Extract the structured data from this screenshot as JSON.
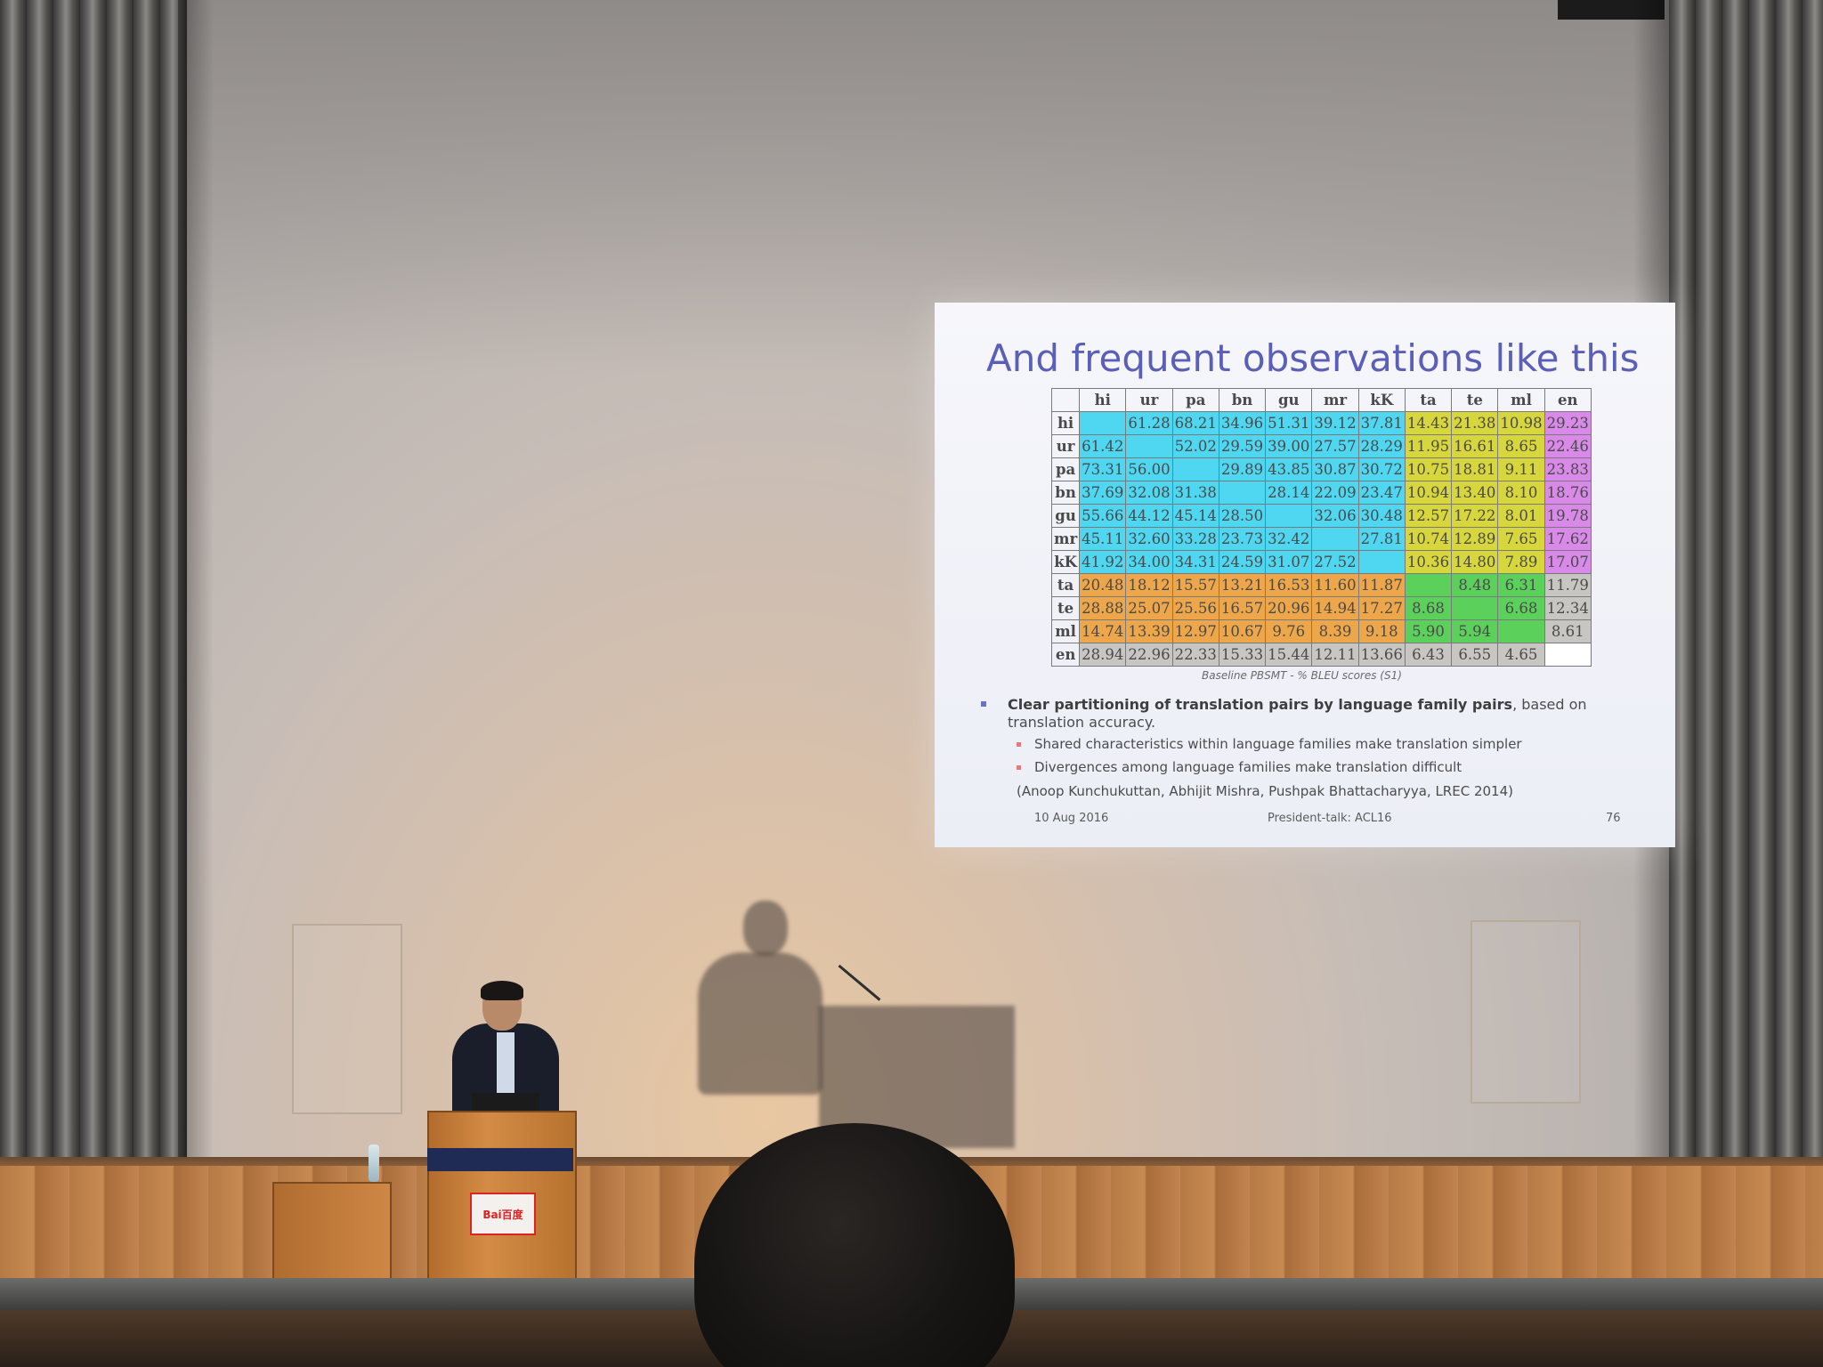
{
  "slide": {
    "title": "And frequent observations like this",
    "table": {
      "columns": [
        "hi",
        "ur",
        "pa",
        "bn",
        "gu",
        "mr",
        "kK",
        "ta",
        "te",
        "ml",
        "en"
      ],
      "rows": [
        {
          "label": "hi",
          "cells": [
            {
              "v": "",
              "c": "cyan"
            },
            {
              "v": "61.28",
              "c": "cyan"
            },
            {
              "v": "68.21",
              "c": "cyan"
            },
            {
              "v": "34.96",
              "c": "cyan"
            },
            {
              "v": "51.31",
              "c": "cyan"
            },
            {
              "v": "39.12",
              "c": "cyan"
            },
            {
              "v": "37.81",
              "c": "cyan"
            },
            {
              "v": "14.43",
              "c": "yellow"
            },
            {
              "v": "21.38",
              "c": "yellow"
            },
            {
              "v": "10.98",
              "c": "yellow"
            },
            {
              "v": "29.23",
              "c": "purple"
            }
          ]
        },
        {
          "label": "ur",
          "cells": [
            {
              "v": "61.42",
              "c": "cyan"
            },
            {
              "v": "",
              "c": "cyan"
            },
            {
              "v": "52.02",
              "c": "cyan"
            },
            {
              "v": "29.59",
              "c": "cyan"
            },
            {
              "v": "39.00",
              "c": "cyan"
            },
            {
              "v": "27.57",
              "c": "cyan"
            },
            {
              "v": "28.29",
              "c": "cyan"
            },
            {
              "v": "11.95",
              "c": "yellow"
            },
            {
              "v": "16.61",
              "c": "yellow"
            },
            {
              "v": "8.65",
              "c": "yellow"
            },
            {
              "v": "22.46",
              "c": "purple"
            }
          ]
        },
        {
          "label": "pa",
          "cells": [
            {
              "v": "73.31",
              "c": "cyan"
            },
            {
              "v": "56.00",
              "c": "cyan"
            },
            {
              "v": "",
              "c": "cyan"
            },
            {
              "v": "29.89",
              "c": "cyan"
            },
            {
              "v": "43.85",
              "c": "cyan"
            },
            {
              "v": "30.87",
              "c": "cyan"
            },
            {
              "v": "30.72",
              "c": "cyan"
            },
            {
              "v": "10.75",
              "c": "yellow"
            },
            {
              "v": "18.81",
              "c": "yellow"
            },
            {
              "v": "9.11",
              "c": "yellow"
            },
            {
              "v": "23.83",
              "c": "purple"
            }
          ]
        },
        {
          "label": "bn",
          "cells": [
            {
              "v": "37.69",
              "c": "cyan"
            },
            {
              "v": "32.08",
              "c": "cyan"
            },
            {
              "v": "31.38",
              "c": "cyan"
            },
            {
              "v": "",
              "c": "cyan"
            },
            {
              "v": "28.14",
              "c": "cyan"
            },
            {
              "v": "22.09",
              "c": "cyan"
            },
            {
              "v": "23.47",
              "c": "cyan"
            },
            {
              "v": "10.94",
              "c": "yellow"
            },
            {
              "v": "13.40",
              "c": "yellow"
            },
            {
              "v": "8.10",
              "c": "yellow"
            },
            {
              "v": "18.76",
              "c": "purple"
            }
          ]
        },
        {
          "label": "gu",
          "cells": [
            {
              "v": "55.66",
              "c": "cyan"
            },
            {
              "v": "44.12",
              "c": "cyan"
            },
            {
              "v": "45.14",
              "c": "cyan"
            },
            {
              "v": "28.50",
              "c": "cyan"
            },
            {
              "v": "",
              "c": "cyan"
            },
            {
              "v": "32.06",
              "c": "cyan"
            },
            {
              "v": "30.48",
              "c": "cyan"
            },
            {
              "v": "12.57",
              "c": "yellow"
            },
            {
              "v": "17.22",
              "c": "yellow"
            },
            {
              "v": "8.01",
              "c": "yellow"
            },
            {
              "v": "19.78",
              "c": "purple"
            }
          ]
        },
        {
          "label": "mr",
          "cells": [
            {
              "v": "45.11",
              "c": "cyan"
            },
            {
              "v": "32.60",
              "c": "cyan"
            },
            {
              "v": "33.28",
              "c": "cyan"
            },
            {
              "v": "23.73",
              "c": "cyan"
            },
            {
              "v": "32.42",
              "c": "cyan"
            },
            {
              "v": "",
              "c": "cyan"
            },
            {
              "v": "27.81",
              "c": "cyan"
            },
            {
              "v": "10.74",
              "c": "yellow"
            },
            {
              "v": "12.89",
              "c": "yellow"
            },
            {
              "v": "7.65",
              "c": "yellow"
            },
            {
              "v": "17.62",
              "c": "purple"
            }
          ]
        },
        {
          "label": "kK",
          "cells": [
            {
              "v": "41.92",
              "c": "cyan"
            },
            {
              "v": "34.00",
              "c": "cyan"
            },
            {
              "v": "34.31",
              "c": "cyan"
            },
            {
              "v": "24.59",
              "c": "cyan"
            },
            {
              "v": "31.07",
              "c": "cyan"
            },
            {
              "v": "27.52",
              "c": "cyan"
            },
            {
              "v": "",
              "c": "cyan"
            },
            {
              "v": "10.36",
              "c": "yellow"
            },
            {
              "v": "14.80",
              "c": "yellow"
            },
            {
              "v": "7.89",
              "c": "yellow"
            },
            {
              "v": "17.07",
              "c": "purple"
            }
          ]
        },
        {
          "label": "ta",
          "cells": [
            {
              "v": "20.48",
              "c": "orange"
            },
            {
              "v": "18.12",
              "c": "orange"
            },
            {
              "v": "15.57",
              "c": "orange"
            },
            {
              "v": "13.21",
              "c": "orange"
            },
            {
              "v": "16.53",
              "c": "orange"
            },
            {
              "v": "11.60",
              "c": "orange"
            },
            {
              "v": "11.87",
              "c": "orange"
            },
            {
              "v": "",
              "c": "green"
            },
            {
              "v": "8.48",
              "c": "green"
            },
            {
              "v": "6.31",
              "c": "green"
            },
            {
              "v": "11.79",
              "c": "gray"
            }
          ]
        },
        {
          "label": "te",
          "cells": [
            {
              "v": "28.88",
              "c": "orange"
            },
            {
              "v": "25.07",
              "c": "orange"
            },
            {
              "v": "25.56",
              "c": "orange"
            },
            {
              "v": "16.57",
              "c": "orange"
            },
            {
              "v": "20.96",
              "c": "orange"
            },
            {
              "v": "14.94",
              "c": "orange"
            },
            {
              "v": "17.27",
              "c": "orange"
            },
            {
              "v": "8.68",
              "c": "green"
            },
            {
              "v": "",
              "c": "green"
            },
            {
              "v": "6.68",
              "c": "green"
            },
            {
              "v": "12.34",
              "c": "gray"
            }
          ]
        },
        {
          "label": "ml",
          "cells": [
            {
              "v": "14.74",
              "c": "orange"
            },
            {
              "v": "13.39",
              "c": "orange"
            },
            {
              "v": "12.97",
              "c": "orange"
            },
            {
              "v": "10.67",
              "c": "orange"
            },
            {
              "v": "9.76",
              "c": "orange"
            },
            {
              "v": "8.39",
              "c": "orange"
            },
            {
              "v": "9.18",
              "c": "orange"
            },
            {
              "v": "5.90",
              "c": "green"
            },
            {
              "v": "5.94",
              "c": "green"
            },
            {
              "v": "",
              "c": "green"
            },
            {
              "v": "8.61",
              "c": "gray"
            }
          ]
        },
        {
          "label": "en",
          "cells": [
            {
              "v": "28.94",
              "c": "gray"
            },
            {
              "v": "22.96",
              "c": "gray"
            },
            {
              "v": "22.33",
              "c": "gray"
            },
            {
              "v": "15.33",
              "c": "gray"
            },
            {
              "v": "15.44",
              "c": "gray"
            },
            {
              "v": "12.11",
              "c": "gray"
            },
            {
              "v": "13.66",
              "c": "gray"
            },
            {
              "v": "6.43",
              "c": "gray"
            },
            {
              "v": "6.55",
              "c": "gray"
            },
            {
              "v": "4.65",
              "c": "gray"
            },
            {
              "v": "",
              "c": "white"
            }
          ]
        }
      ]
    },
    "caption": "Baseline PBSMT - % BLEU scores (S1)",
    "bullet_main_bold": "Clear partitioning of translation pairs by language family pairs",
    "bullet_main_rest": ", based on translation accuracy.",
    "sub_bullets": [
      "Shared characteristics within language families  make translation simpler",
      "Divergences among language families make translation difficult"
    ],
    "citation": "(Anoop Kunchukuttan, Abhijit Mishra, Pushpak Bhattacharyya, LREC 2014)",
    "footer_date": "10 Aug 2016",
    "footer_center": "President-talk: ACL16",
    "footer_page": "76"
  },
  "podium_sign_text": "Bai百度",
  "colors": {
    "cyan": "#4fd6f0",
    "yellow": "#d7d63c",
    "purple": "#d98ae9",
    "orange": "#eda64a",
    "green": "#5bd05b",
    "gray": "#c8c6c3",
    "title": "#5a5fb8"
  }
}
